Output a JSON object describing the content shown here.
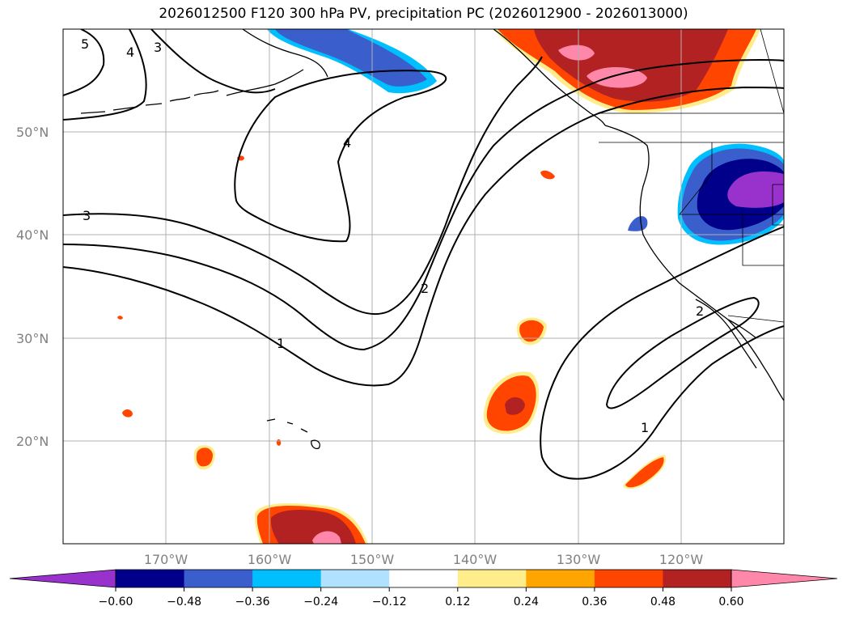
{
  "chart_data": {
    "type": "contour-map",
    "title": "2026012500 F120 300 hPa PV, precipitation PC (2026012900 - 2026013000)",
    "projection": "PlateCarree",
    "extent": {
      "lon": [
        -180,
        -110
      ],
      "lat": [
        10,
        60
      ]
    },
    "grid": true,
    "lat_ticks": [
      {
        "value": 20,
        "label": "20°N"
      },
      {
        "value": 30,
        "label": "30°N"
      },
      {
        "value": 40,
        "label": "40°N"
      },
      {
        "value": 50,
        "label": "50°N"
      }
    ],
    "lon_ticks": [
      {
        "value": -170,
        "label": "170°W"
      },
      {
        "value": -160,
        "label": "160°W"
      },
      {
        "value": -150,
        "label": "150°W"
      },
      {
        "value": -140,
        "label": "140°W"
      },
      {
        "value": -130,
        "label": "130°W"
      },
      {
        "value": -120,
        "label": "120°W"
      }
    ],
    "contour_labels": [
      "5",
      "4",
      "3",
      "4",
      "3",
      "2",
      "1",
      "2",
      "1"
    ],
    "colorbar": {
      "orientation": "horizontal",
      "extend": "both",
      "boundaries": [
        -0.6,
        -0.48,
        -0.36,
        -0.24,
        -0.12,
        0.12,
        0.24,
        0.36,
        0.48,
        0.6
      ],
      "tick_labels": [
        "−0.60",
        "−0.48",
        "−0.36",
        "−0.24",
        "−0.12",
        "0.12",
        "0.24",
        "0.36",
        "0.48",
        "0.60"
      ],
      "colors": [
        "#9932CC",
        "#00008B",
        "#3A5FCD",
        "#00BFFF",
        "#B0E2FF",
        "#FFFFFF",
        "#FFEC8B",
        "#FFA500",
        "#FF4500",
        "#B22222",
        "#FF88AA"
      ]
    }
  }
}
